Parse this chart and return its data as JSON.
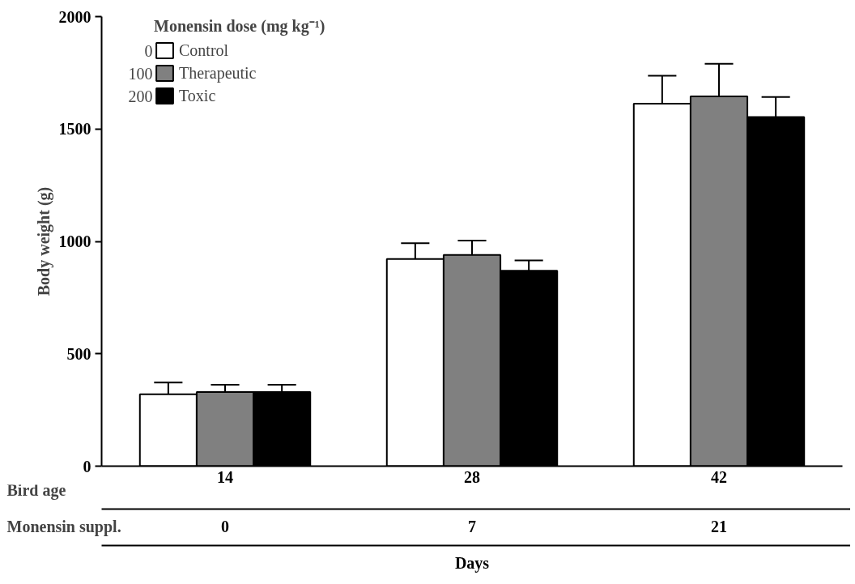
{
  "chart_data": {
    "type": "bar",
    "legend_title": "Monensin dose (mg kg⁻¹)",
    "ylabel": "Body weight (g)",
    "categories": [
      "14",
      "28",
      "42"
    ],
    "series": [
      {
        "name": "Control",
        "color": "#ffffff",
        "values": [
          320,
          922,
          1613
        ],
        "errors": [
          52,
          70,
          124
        ]
      },
      {
        "name": "Therapeutic",
        "color": "#808080",
        "values": [
          330,
          940,
          1645
        ],
        "errors": [
          32,
          64,
          145
        ]
      },
      {
        "name": "Toxic",
        "color": "#000000",
        "values": [
          330,
          869,
          1553
        ],
        "errors": [
          32,
          46,
          89
        ]
      }
    ],
    "ylim": [
      0,
      2000
    ],
    "yticks": [
      0,
      500,
      1000,
      1500,
      2000
    ],
    "legend": "top left",
    "annotations": [
      "0",
      "100",
      "200",
      "Bird age",
      "Monensin suppl.",
      "0",
      "7",
      "21",
      "Days"
    ]
  }
}
